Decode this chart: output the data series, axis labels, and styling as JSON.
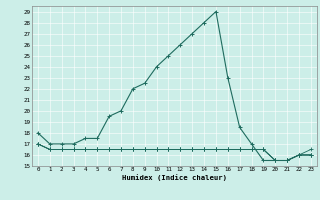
{
  "xlabel": "Humidex (Indice chaleur)",
  "bg_color": "#cceee8",
  "line_color": "#1e6b5e",
  "grid_color": "#ffffff",
  "xlim": [
    -0.5,
    23.5
  ],
  "ylim": [
    15,
    29.5
  ],
  "xticks": [
    0,
    1,
    2,
    3,
    4,
    5,
    6,
    7,
    8,
    9,
    10,
    11,
    12,
    13,
    14,
    15,
    16,
    17,
    18,
    19,
    20,
    21,
    22,
    23
  ],
  "yticks": [
    15,
    16,
    17,
    18,
    19,
    20,
    21,
    22,
    23,
    24,
    25,
    26,
    27,
    28,
    29
  ],
  "series": [
    {
      "x": [
        0,
        1,
        2,
        3,
        4,
        5,
        6,
        7,
        8,
        9,
        10,
        11,
        12,
        13,
        14,
        15,
        16,
        17,
        18,
        19,
        20,
        21,
        22,
        23
      ],
      "y": [
        18,
        17,
        17,
        17,
        17.5,
        17.5,
        19.5,
        20,
        22,
        22.5,
        24,
        25,
        26,
        27,
        28,
        29,
        23,
        18.5,
        17,
        15.5,
        15.5,
        15.5,
        16,
        16
      ]
    },
    {
      "x": [
        0,
        1,
        2,
        3,
        4,
        5,
        6,
        7,
        8,
        9,
        10,
        11,
        12,
        13,
        14,
        15,
        16,
        17,
        18,
        19,
        20,
        21,
        22,
        23
      ],
      "y": [
        17,
        16.5,
        16.5,
        16.5,
        16.5,
        16.5,
        16.5,
        16.5,
        16.5,
        16.5,
        16.5,
        16.5,
        16.5,
        16.5,
        16.5,
        16.5,
        16.5,
        16.5,
        16.5,
        16.5,
        15.5,
        15.5,
        16,
        16
      ]
    },
    {
      "x": [
        0,
        1,
        2,
        3,
        4,
        5,
        6,
        7,
        8,
        9,
        10,
        11,
        12,
        13,
        14,
        15,
        16,
        17,
        18,
        19,
        20,
        21,
        22,
        23
      ],
      "y": [
        17,
        16.5,
        16.5,
        16.5,
        16.5,
        16.5,
        16.5,
        16.5,
        16.5,
        16.5,
        16.5,
        16.5,
        16.5,
        16.5,
        16.5,
        16.5,
        16.5,
        16.5,
        16.5,
        16.5,
        15.5,
        15.5,
        16,
        16
      ]
    },
    {
      "x": [
        0,
        1,
        2,
        3,
        4,
        5,
        6,
        7,
        8,
        9,
        10,
        11,
        12,
        13,
        14,
        15,
        16,
        17,
        18,
        19,
        20,
        21,
        22,
        23
      ],
      "y": [
        17,
        16.5,
        16.5,
        16.5,
        16.5,
        16.5,
        16.5,
        16.5,
        16.5,
        16.5,
        16.5,
        16.5,
        16.5,
        16.5,
        16.5,
        16.5,
        16.5,
        16.5,
        16.5,
        16.5,
        15.5,
        15.5,
        16,
        16.5
      ]
    }
  ]
}
